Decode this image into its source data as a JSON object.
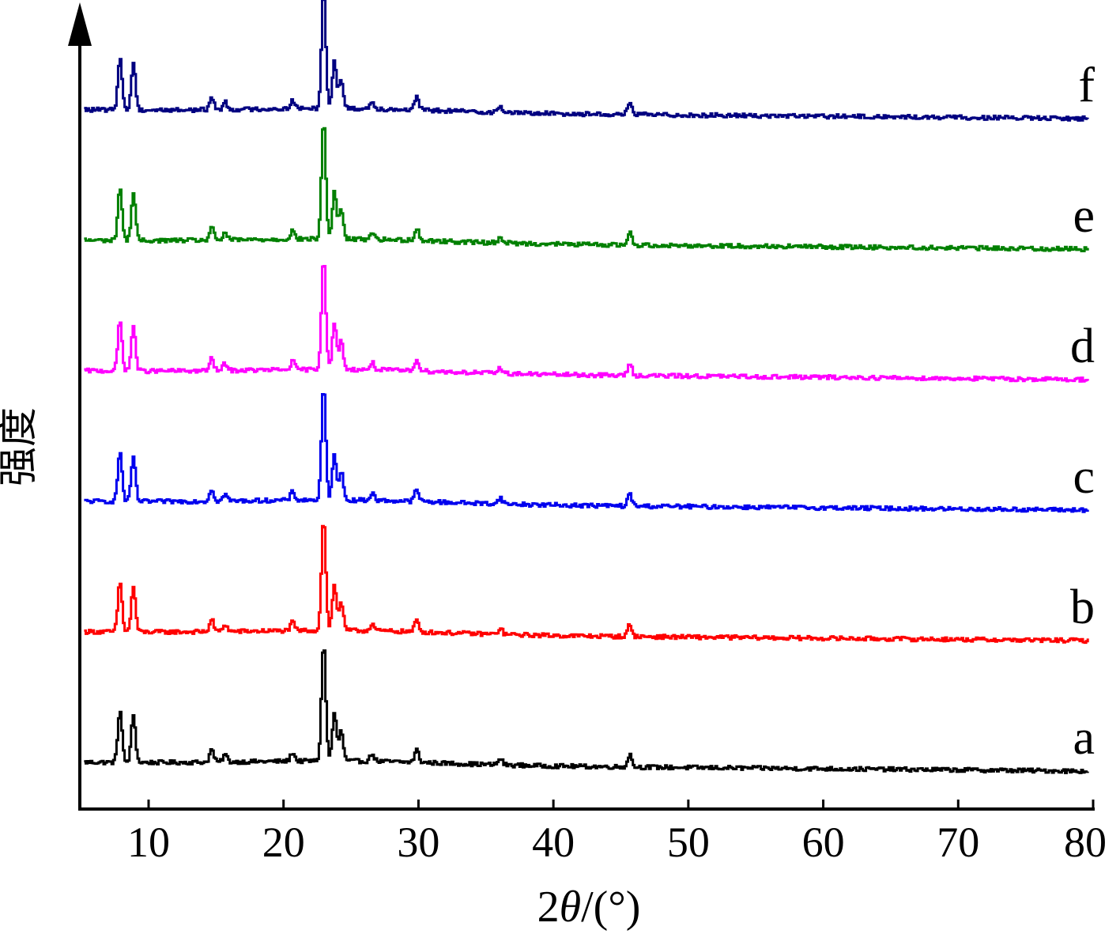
{
  "chart_data": {
    "type": "line",
    "xlabel_prefix": "2",
    "xlabel_theta": "θ",
    "xlabel_suffix": "/(°)",
    "ylabel": "强度",
    "xlim": [
      5,
      80
    ],
    "x_ticks": [
      10,
      20,
      30,
      40,
      50,
      60,
      70,
      80
    ],
    "grid": false,
    "legend": "labels at right end of each curve",
    "peaks": [
      {
        "two_theta": 7.8,
        "height": 0.42
      },
      {
        "two_theta": 8.8,
        "height": 0.38
      },
      {
        "two_theta": 14.6,
        "height": 0.1
      },
      {
        "two_theta": 15.6,
        "height": 0.06
      },
      {
        "two_theta": 20.6,
        "height": 0.07
      },
      {
        "two_theta": 22.9,
        "height": 0.95
      },
      {
        "two_theta": 23.7,
        "height": 0.38
      },
      {
        "two_theta": 24.2,
        "height": 0.24
      },
      {
        "two_theta": 26.5,
        "height": 0.06
      },
      {
        "two_theta": 29.8,
        "height": 0.1
      },
      {
        "two_theta": 36.0,
        "height": 0.05
      },
      {
        "two_theta": 45.6,
        "height": 0.1
      }
    ],
    "series": [
      {
        "name": "a",
        "color": "#000000",
        "offset": 0.0,
        "scale": 1.05
      },
      {
        "name": "b",
        "color": "#ff0000",
        "offset": 1.0,
        "scale": 1.0
      },
      {
        "name": "c",
        "color": "#0000ee",
        "offset": 2.0,
        "scale": 1.0
      },
      {
        "name": "d",
        "color": "#ff00ff",
        "offset": 3.0,
        "scale": 1.0
      },
      {
        "name": "e",
        "color": "#008000",
        "offset": 4.0,
        "scale": 1.05
      },
      {
        "name": "f",
        "color": "#000080",
        "offset": 5.0,
        "scale": 1.05
      }
    ]
  }
}
